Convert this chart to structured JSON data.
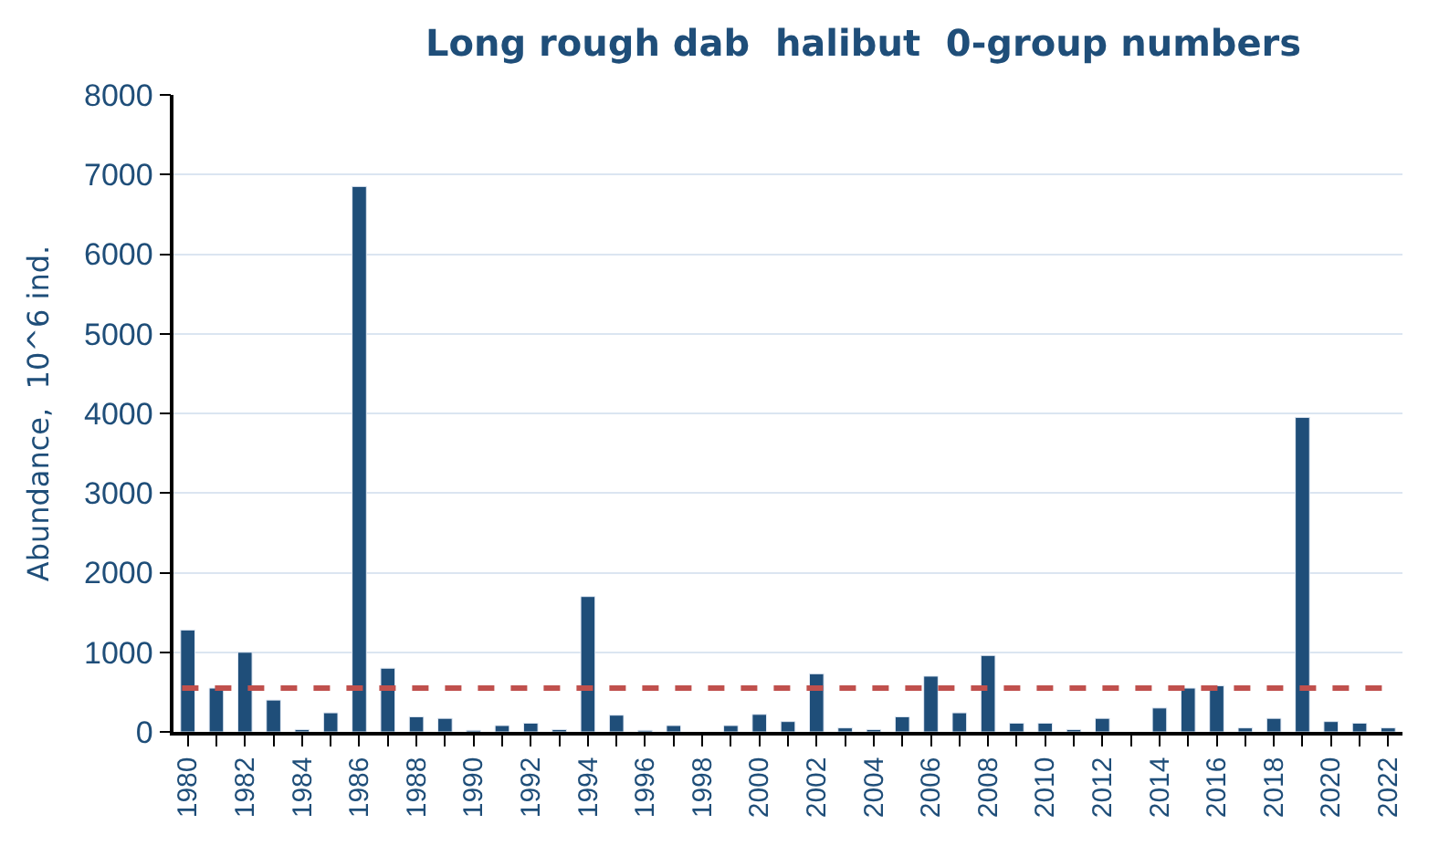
{
  "chart_data": {
    "type": "bar",
    "title": "Long rough dab  halibut  0-group numbers",
    "ylabel": "Abundance,  10^6 ind.",
    "categories": [
      "1980",
      null,
      "1982",
      null,
      "1984",
      null,
      "1986",
      null,
      "1988",
      null,
      "1990",
      null,
      "1992",
      null,
      "1994",
      null,
      "1996",
      null,
      "1998",
      null,
      "2000",
      null,
      "2002",
      null,
      "2004",
      null,
      "2006",
      null,
      "2008",
      null,
      "2010",
      null,
      "2012",
      null,
      "2014",
      null,
      "2016",
      null,
      "2018",
      null,
      "2020",
      null,
      "2022"
    ],
    "values": [
      1280,
      550,
      1000,
      400,
      30,
      240,
      6850,
      800,
      190,
      170,
      20,
      80,
      110,
      30,
      1700,
      210,
      20,
      80,
      null,
      80,
      220,
      130,
      730,
      50,
      30,
      190,
      700,
      240,
      960,
      110,
      110,
      30,
      170,
      null,
      300,
      550,
      580,
      50,
      170,
      3950,
      130,
      110,
      50
    ],
    "color": "#1f4e79",
    "ylim": [
      0,
      8000
    ],
    "yticks": [
      0,
      1000,
      2000,
      3000,
      4000,
      5000,
      6000,
      7000,
      8000
    ],
    "grid": "y",
    "ref_lines": [
      {
        "axis": "y",
        "value": 550,
        "color": "#c0504d",
        "line_style": "dashed"
      }
    ]
  }
}
